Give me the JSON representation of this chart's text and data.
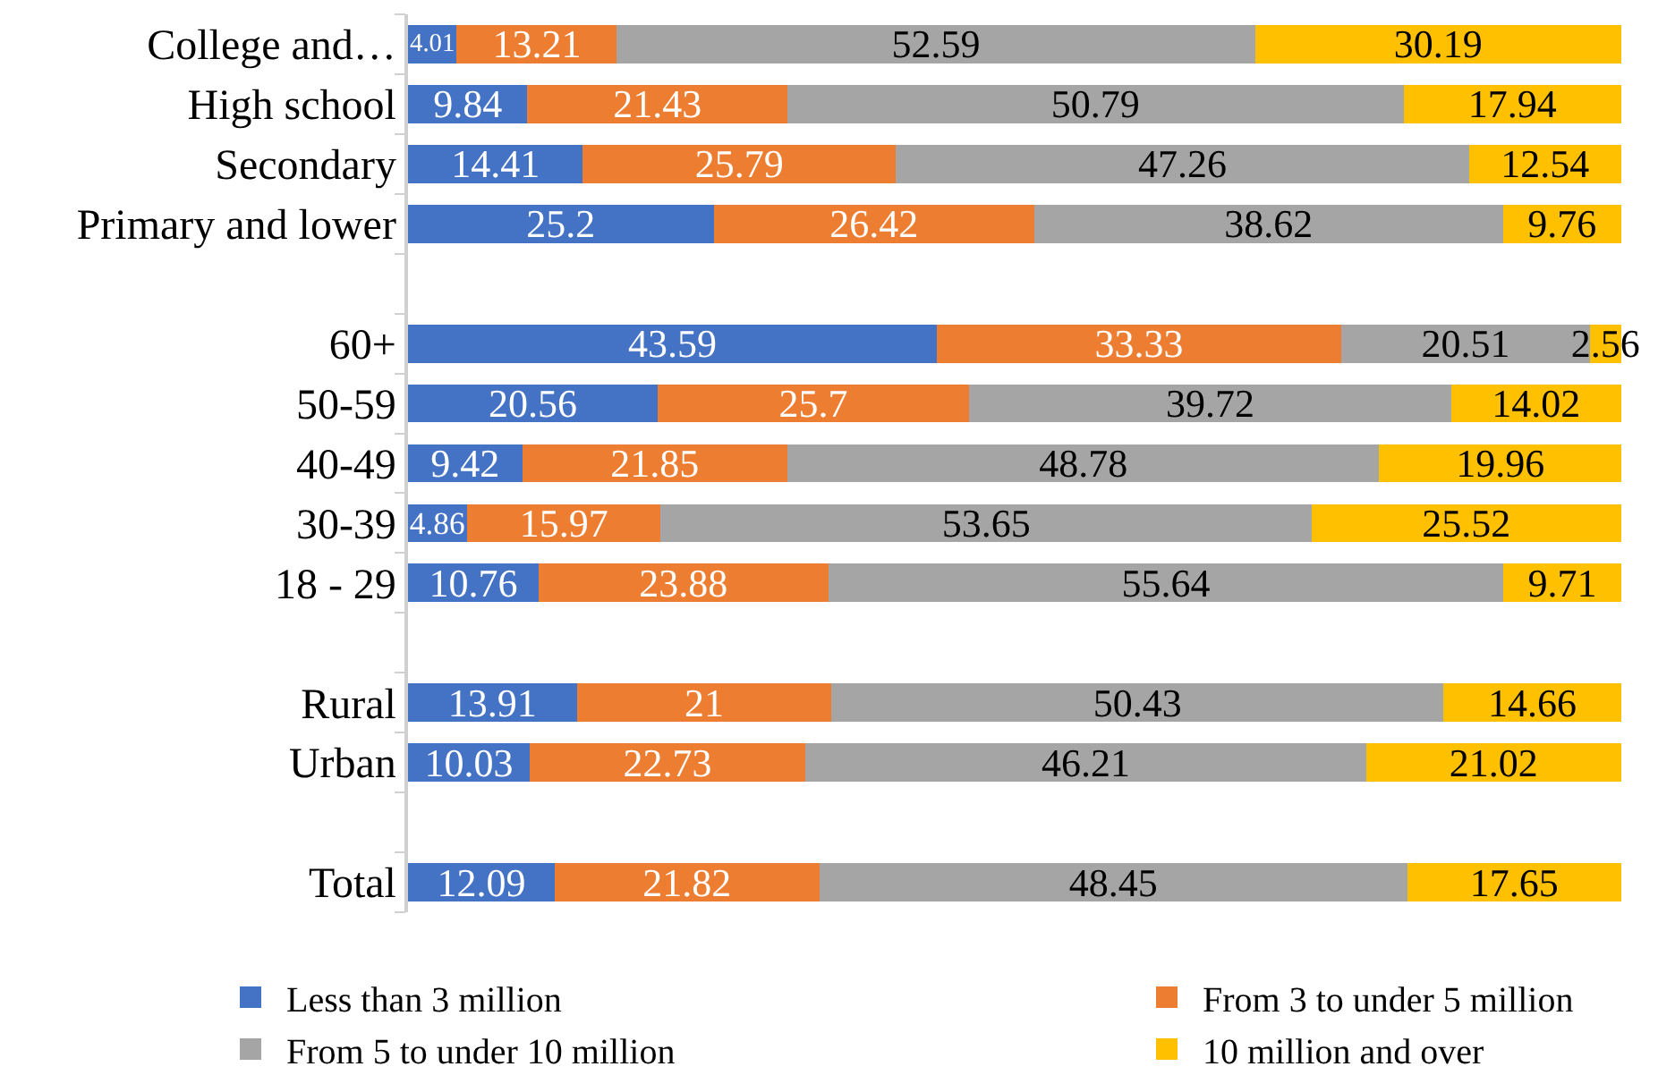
{
  "chart_data": {
    "type": "bar",
    "orientation": "horizontal",
    "stacked": true,
    "categories": [
      "College and…",
      "High school",
      "Secondary",
      "Primary and lower",
      null,
      "60+",
      "50-59",
      "40-49",
      "30-39",
      "18 - 29",
      null,
      "Rural",
      "Urban",
      null,
      "Total"
    ],
    "series": [
      {
        "name": "Less than 3 million",
        "color": "#4472c4",
        "values": [
          4.01,
          9.84,
          14.41,
          25.2,
          null,
          43.59,
          20.56,
          9.42,
          4.86,
          10.76,
          null,
          13.91,
          10.03,
          null,
          12.09
        ]
      },
      {
        "name": "From 3 to under 5 million",
        "color": "#ed7d31",
        "values": [
          13.21,
          21.43,
          25.79,
          26.42,
          null,
          33.33,
          25.7,
          21.85,
          15.97,
          23.88,
          null,
          21,
          22.73,
          null,
          21.82
        ]
      },
      {
        "name": "From 5 to under 10 million",
        "color": "#a5a5a5",
        "values": [
          52.59,
          50.79,
          47.26,
          38.62,
          null,
          20.51,
          39.72,
          48.78,
          53.65,
          55.64,
          null,
          50.43,
          46.21,
          null,
          48.45
        ]
      },
      {
        "name": "10 million and over",
        "color": "#ffc000",
        "values": [
          30.19,
          17.94,
          12.54,
          9.76,
          null,
          2.56,
          14.02,
          19.96,
          25.52,
          9.71,
          null,
          14.66,
          21.02,
          null,
          17.65
        ]
      }
    ],
    "tick_labels": "y",
    "data_labels": true,
    "legend": "bottom"
  }
}
